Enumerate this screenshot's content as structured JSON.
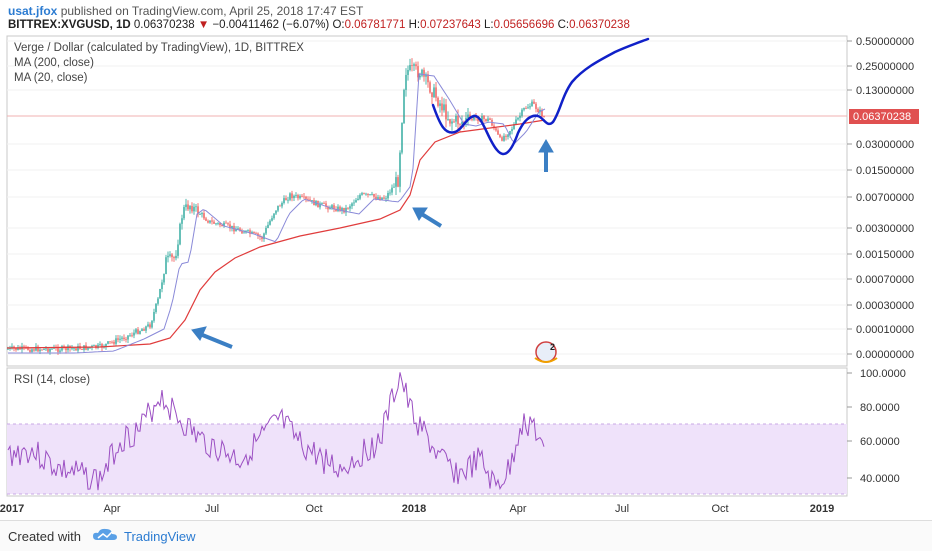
{
  "header": {
    "user": "usat.jfox",
    "published": "published on TradingView.com, April 25, 2018 17:47 EST",
    "symbol": "BITTREX:XVGUSD, 1D",
    "last": "0.06370238",
    "change": "−0.00411462 (−6.07%)",
    "o_label": "O:",
    "o": "0.06781771",
    "h_label": "H:",
    "h": "0.07237643",
    "l_label": "L:",
    "l": "0.05656696",
    "c_label": "C:",
    "c": "0.06370238"
  },
  "price_panel": {
    "title": "Verge / Dollar (calculated by TradingView), 1D, BITTREX",
    "ma200_label": "MA (200, close)",
    "ma20_label": "MA (20, close)",
    "ma200_color": "#e03c3c",
    "ma20_color": "#8a8ad8",
    "up_color": "#26a69a",
    "down_color": "#ef5350",
    "price_tag": "0.06370238"
  },
  "rsi_panel": {
    "title": "RSI (14, close)",
    "line_color": "#9b4fc2",
    "band_color": "#e9d7f7"
  },
  "footer": {
    "created": "Created with",
    "brand": "TradingView"
  },
  "chart_data": [
    {
      "type": "line",
      "panel": "price",
      "scale": "log",
      "y_ticks": [
        "0.50000000",
        "0.25000000",
        "0.13000000",
        "0.06370238",
        "0.03000000",
        "0.01500000",
        "0.00700000",
        "0.00300000",
        "0.00150000",
        "0.00070000",
        "0.00030000",
        "0.00010000",
        "0.00000000"
      ],
      "x_ticks": [
        "2017",
        "Apr",
        "Jul",
        "Oct",
        "2018",
        "Apr",
        "Jul",
        "Oct",
        "2019"
      ],
      "series": [
        {
          "name": "MA (200, close)",
          "values": []
        },
        {
          "name": "MA (20, close)",
          "values": []
        }
      ],
      "annotations": [
        {
          "type": "arrow",
          "description": "blue arrow pointing to MA(200) near Apr 2017"
        },
        {
          "type": "arrow",
          "description": "blue arrow pointing to MA(200) near Dec 2017"
        },
        {
          "type": "arrow",
          "description": "blue arrow pointing up, Apr 2018"
        },
        {
          "type": "curve",
          "description": "hand-drawn blue projection line upward to ~0.50"
        }
      ]
    },
    {
      "type": "line",
      "panel": "rsi",
      "y_ticks": [
        "100.0000",
        "80.0000",
        "60.0000",
        "40.0000"
      ],
      "band": [
        30,
        70
      ]
    }
  ]
}
